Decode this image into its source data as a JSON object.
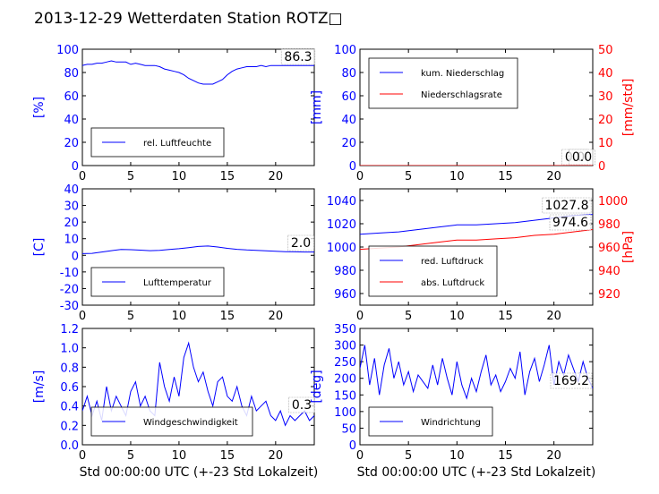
{
  "figure": {
    "title": "2013-12-29 Wetterdaten Station ROTZ□",
    "xlabel": "Std 00:00:00 UTC (+-23 Std Lokalzeit)"
  },
  "chart_data": [
    {
      "id": "humidity",
      "type": "line",
      "xlim": [
        0,
        24
      ],
      "xticks": [
        0,
        5,
        10,
        15,
        20
      ],
      "ylim": [
        0,
        100
      ],
      "yticks": [
        0,
        20,
        40,
        60,
        80,
        100
      ],
      "ylabel": "[%]",
      "legend_loc": "lower-left",
      "series": [
        {
          "name": "rel. Luftfeuchte",
          "color": "#0000ff",
          "x": [
            0,
            0.5,
            1,
            1.5,
            2,
            2.5,
            3,
            3.5,
            4,
            4.5,
            5,
            5.5,
            6,
            6.5,
            7,
            7.5,
            8,
            8.5,
            9,
            9.5,
            10,
            10.5,
            11,
            11.5,
            12,
            12.5,
            13,
            13.5,
            14,
            14.5,
            15,
            15.5,
            16,
            16.5,
            17,
            17.5,
            18,
            18.5,
            19,
            19.5,
            20,
            20.5,
            21,
            21.5,
            22,
            22.5,
            23,
            23.5,
            24
          ],
          "y": [
            86,
            87,
            87,
            88,
            88,
            89,
            90,
            89,
            89,
            89,
            87,
            88,
            87,
            86,
            86,
            86,
            85,
            83,
            82,
            81,
            80,
            78,
            75,
            73,
            71,
            70,
            70,
            70,
            72,
            74,
            78,
            81,
            83,
            84,
            85,
            85,
            85,
            86,
            85,
            86,
            86,
            86,
            86,
            86,
            86,
            86,
            86,
            86,
            86
          ]
        }
      ],
      "annotations": [
        "86.3"
      ]
    },
    {
      "id": "precipitation",
      "type": "line",
      "xlim": [
        0,
        24
      ],
      "xticks": [
        0,
        5,
        10,
        15,
        20
      ],
      "ylim": [
        0,
        100
      ],
      "yticks": [
        0,
        20,
        40,
        60,
        80,
        100
      ],
      "ylabel": "[mm]",
      "y2lim": [
        0,
        50
      ],
      "y2ticks": [
        0,
        10,
        20,
        30,
        40,
        50
      ],
      "y2label": "[mm/std]",
      "legend_loc": "upper-left",
      "series": [
        {
          "name": "kum. Niederschlag",
          "color": "#0000ff",
          "axis": "left",
          "x": [
            0,
            24
          ],
          "y": [
            0,
            0
          ]
        },
        {
          "name": "Niederschlagsrate",
          "color": "#ff0000",
          "axis": "right",
          "x": [
            0,
            24
          ],
          "y": [
            0,
            0
          ]
        }
      ],
      "annotations": [
        "0.0",
        "0.0"
      ]
    },
    {
      "id": "temperature",
      "type": "line",
      "xlim": [
        0,
        24
      ],
      "xticks": [
        0,
        5,
        10,
        15,
        20
      ],
      "ylim": [
        -30,
        40
      ],
      "yticks": [
        -30,
        -20,
        -10,
        0,
        10,
        20,
        30,
        40
      ],
      "ylabel": "[C]",
      "legend_loc": "lower-left",
      "series": [
        {
          "name": "Lufttemperatur",
          "color": "#0000ff",
          "x": [
            0,
            1,
            2,
            3,
            4,
            5,
            6,
            7,
            8,
            9,
            10,
            11,
            12,
            13,
            14,
            15,
            16,
            17,
            18,
            19,
            20,
            21,
            22,
            23,
            24
          ],
          "y": [
            1.0,
            1.2,
            2.0,
            2.8,
            3.5,
            3.4,
            3.1,
            2.8,
            3.0,
            3.5,
            4.0,
            4.6,
            5.3,
            5.6,
            5.0,
            4.2,
            3.6,
            3.2,
            3.0,
            2.7,
            2.4,
            2.2,
            2.1,
            2.0,
            2.0
          ]
        }
      ],
      "annotations": [
        "2.0"
      ]
    },
    {
      "id": "pressure",
      "type": "line",
      "xlim": [
        0,
        24
      ],
      "xticks": [
        0,
        5,
        10,
        15,
        20
      ],
      "ylim": [
        950,
        1050
      ],
      "yticks": [
        960,
        980,
        1000,
        1020,
        1040
      ],
      "y2lim": [
        910,
        1010
      ],
      "y2ticks": [
        920,
        940,
        960,
        980,
        1000
      ],
      "y2label": "[hPa]",
      "legend_loc": "lower-left",
      "series": [
        {
          "name": "red. Luftdruck",
          "color": "#0000ff",
          "axis": "left",
          "x": [
            0,
            2,
            4,
            6,
            8,
            10,
            12,
            14,
            16,
            18,
            20,
            22,
            24
          ],
          "y": [
            1011,
            1012,
            1013,
            1015,
            1017,
            1019,
            1019,
            1020,
            1021,
            1023,
            1025,
            1027,
            1028
          ]
        },
        {
          "name": "abs. Luftdruck",
          "color": "#ff0000",
          "axis": "right",
          "x": [
            0,
            2,
            4,
            6,
            8,
            10,
            12,
            14,
            16,
            18,
            20,
            22,
            24
          ],
          "y": [
            958,
            959,
            960,
            962,
            964,
            966,
            966,
            967,
            968,
            970,
            971,
            973,
            975
          ]
        }
      ],
      "annotations": [
        "1027.8",
        "974.6"
      ]
    },
    {
      "id": "windspeed",
      "type": "line",
      "xlim": [
        0,
        24
      ],
      "xticks": [
        0,
        5,
        10,
        15,
        20
      ],
      "ylim": [
        0,
        1.2
      ],
      "yticks": [
        0.0,
        0.2,
        0.4,
        0.6,
        0.8,
        1.0,
        1.2
      ],
      "ylabel": "[m/s]",
      "legend_loc": "lower-left",
      "series": [
        {
          "name": "Windgeschwindigkeit",
          "color": "#0000ff",
          "x": [
            0,
            0.5,
            1,
            1.5,
            2,
            2.5,
            3,
            3.5,
            4,
            4.5,
            5,
            5.5,
            6,
            6.5,
            7,
            7.5,
            8,
            8.5,
            9,
            9.5,
            10,
            10.5,
            11,
            11.5,
            12,
            12.5,
            13,
            13.5,
            14,
            14.5,
            15,
            15.5,
            16,
            16.5,
            17,
            17.5,
            18,
            18.5,
            19,
            19.5,
            20,
            20.5,
            21,
            21.5,
            22,
            22.5,
            23,
            23.5,
            24
          ],
          "y": [
            0.35,
            0.5,
            0.3,
            0.45,
            0.25,
            0.6,
            0.35,
            0.5,
            0.4,
            0.3,
            0.55,
            0.65,
            0.4,
            0.5,
            0.35,
            0.3,
            0.85,
            0.6,
            0.45,
            0.7,
            0.5,
            0.9,
            1.05,
            0.8,
            0.65,
            0.75,
            0.55,
            0.4,
            0.65,
            0.7,
            0.5,
            0.45,
            0.6,
            0.4,
            0.3,
            0.5,
            0.35,
            0.4,
            0.45,
            0.3,
            0.25,
            0.35,
            0.2,
            0.3,
            0.25,
            0.3,
            0.35,
            0.25,
            0.3
          ]
        }
      ],
      "annotations": [
        "0.3"
      ]
    },
    {
      "id": "winddirection",
      "type": "line",
      "xlim": [
        0,
        24
      ],
      "xticks": [
        0,
        5,
        10,
        15,
        20
      ],
      "ylim": [
        0,
        350
      ],
      "yticks": [
        0,
        50,
        100,
        150,
        200,
        250,
        300,
        350
      ],
      "ylabel": "[deg]",
      "legend_loc": "lower-left",
      "series": [
        {
          "name": "Windrichtung",
          "color": "#0000ff",
          "x": [
            0,
            0.5,
            1,
            1.5,
            2,
            2.5,
            3,
            3.5,
            4,
            4.5,
            5,
            5.5,
            6,
            6.5,
            7,
            7.5,
            8,
            8.5,
            9,
            9.5,
            10,
            10.5,
            11,
            11.5,
            12,
            12.5,
            13,
            13.5,
            14,
            14.5,
            15,
            15.5,
            16,
            16.5,
            17,
            17.5,
            18,
            18.5,
            19,
            19.5,
            20,
            20.5,
            21,
            21.5,
            22,
            22.5,
            23,
            23.5,
            24
          ],
          "y": [
            230,
            300,
            180,
            260,
            150,
            240,
            290,
            200,
            250,
            180,
            220,
            160,
            210,
            190,
            170,
            240,
            180,
            260,
            200,
            150,
            250,
            180,
            140,
            200,
            160,
            220,
            270,
            180,
            210,
            160,
            190,
            230,
            200,
            280,
            150,
            220,
            260,
            190,
            240,
            300,
            180,
            250,
            210,
            270,
            230,
            190,
            250,
            200,
            170
          ]
        }
      ],
      "annotations": [
        "169.2"
      ]
    }
  ]
}
